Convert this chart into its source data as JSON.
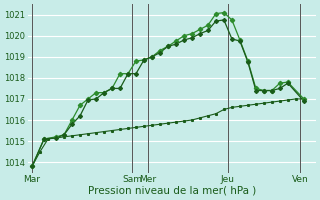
{
  "xlabel": "Pression niveau de la mer( hPa )",
  "bg_color": "#c8ece8",
  "grid_color": "#ffffff",
  "line_color_dark": "#1a5c1a",
  "line_color_mid": "#2d8c2d",
  "ylim": [
    1013.5,
    1021.5
  ],
  "xlim": [
    0,
    36
  ],
  "day_labels": [
    "Mar",
    "Sam",
    "Mer",
    "Jeu",
    "Ven"
  ],
  "day_positions": [
    0.5,
    13,
    15,
    25,
    34
  ],
  "vline_positions": [
    0.5,
    13,
    15,
    25,
    34
  ],
  "series1_x": [
    0.5,
    1.5,
    2.5,
    3.5,
    4.5,
    5.5,
    6.5,
    7.5,
    8.5,
    9.5,
    10.5,
    11.5,
    12.5,
    13.5,
    14.5,
    15.5,
    16.5,
    17.5,
    18.5,
    19.5,
    20.5,
    21.5,
    22.5,
    23.5,
    24.5,
    25.5,
    26.5,
    27.5,
    28.5,
    29.5,
    30.5,
    31.5,
    32.5,
    33.5,
    34.5
  ],
  "series1_y": [
    1013.8,
    1014.5,
    1015.1,
    1015.15,
    1015.2,
    1015.25,
    1015.3,
    1015.35,
    1015.4,
    1015.45,
    1015.5,
    1015.55,
    1015.6,
    1015.65,
    1015.7,
    1015.75,
    1015.8,
    1015.85,
    1015.9,
    1015.95,
    1016.0,
    1016.1,
    1016.2,
    1016.3,
    1016.5,
    1016.6,
    1016.65,
    1016.7,
    1016.75,
    1016.8,
    1016.85,
    1016.9,
    1016.95,
    1017.0,
    1017.0
  ],
  "series2_x": [
    0.5,
    2.0,
    3.5,
    4.5,
    5.5,
    6.5,
    7.5,
    8.5,
    9.5,
    10.5,
    11.5,
    12.5,
    13.5,
    14.5,
    15.5,
    16.5,
    17.5,
    18.5,
    19.5,
    20.5,
    21.5,
    22.5,
    23.5,
    24.5,
    25.5,
    26.5,
    27.5,
    28.5,
    29.5,
    30.5,
    31.5,
    32.5,
    34.5
  ],
  "series2_y": [
    1013.8,
    1015.1,
    1015.2,
    1015.3,
    1016.0,
    1016.7,
    1017.0,
    1017.3,
    1017.3,
    1017.5,
    1018.2,
    1018.2,
    1018.8,
    1018.85,
    1019.0,
    1019.3,
    1019.5,
    1019.75,
    1020.0,
    1020.1,
    1020.3,
    1020.5,
    1021.05,
    1021.1,
    1020.75,
    1019.8,
    1018.8,
    1017.5,
    1017.4,
    1017.4,
    1017.75,
    1017.8,
    1017.0
  ],
  "series3_x": [
    0.5,
    2.0,
    3.5,
    4.5,
    5.5,
    6.5,
    7.5,
    8.5,
    9.5,
    10.5,
    11.5,
    12.5,
    13.5,
    14.5,
    15.5,
    16.5,
    17.5,
    18.5,
    19.5,
    20.5,
    21.5,
    22.5,
    23.5,
    24.5,
    25.5,
    26.5,
    27.5,
    28.5,
    29.5,
    30.5,
    31.5,
    32.5,
    34.5
  ],
  "series3_y": [
    1013.8,
    1015.1,
    1015.15,
    1015.3,
    1015.8,
    1016.2,
    1016.95,
    1017.0,
    1017.3,
    1017.5,
    1017.5,
    1018.2,
    1018.2,
    1018.85,
    1019.0,
    1019.2,
    1019.5,
    1019.6,
    1019.8,
    1019.9,
    1020.1,
    1020.25,
    1020.7,
    1020.75,
    1019.85,
    1019.75,
    1018.75,
    1017.4,
    1017.4,
    1017.4,
    1017.5,
    1017.75,
    1016.9
  ]
}
